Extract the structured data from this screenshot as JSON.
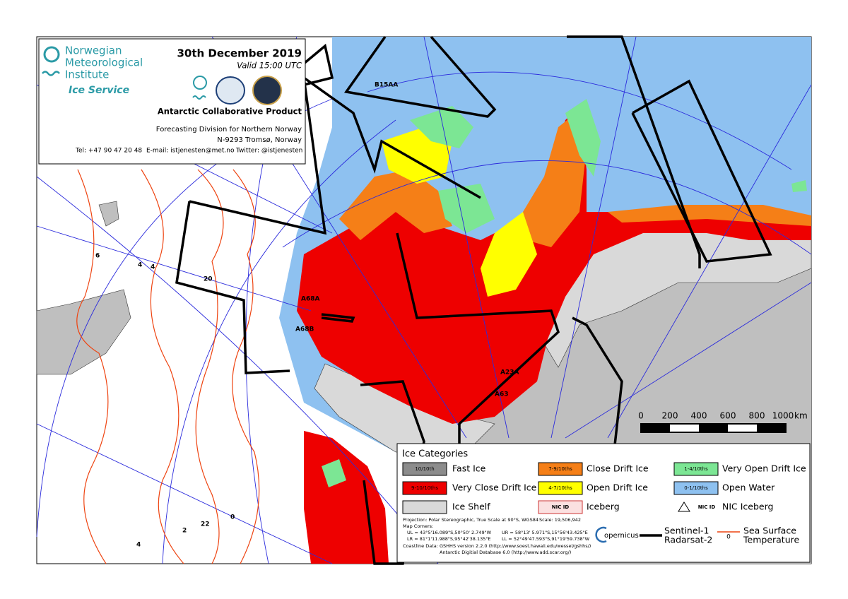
{
  "header": {
    "org_name": [
      "Norwegian",
      "Meteorological",
      "Institute"
    ],
    "service": "Ice Service",
    "date": "30th December 2019",
    "valid": "Valid 15:00 UTC",
    "product": "Antarctic Collaborative Product",
    "division": "Forecasting Division for Northern Norway",
    "address": "N-9293 Tromsø, Norway",
    "tel": "Tel: +47 90 47 20 48",
    "email": "E-mail: istjenesten@met.no",
    "twitter": "Twitter: @istjenesten"
  },
  "map_labels": [
    "B15AA",
    "A68A",
    "A68B",
    "A23A",
    "A63"
  ],
  "sst_labels": [
    6,
    4,
    4,
    20,
    2,
    22,
    0,
    4
  ],
  "scale_bar": {
    "ticks": [
      0,
      200,
      400,
      600,
      800,
      1000
    ],
    "unit": "km"
  },
  "legend": {
    "title": "Ice Categories",
    "items": [
      {
        "swatch": "10/10th",
        "label": "Fast Ice"
      },
      {
        "swatch": "9-10/10ths",
        "label": "Very Close Drift Ice"
      },
      {
        "label": "Ice Shelf"
      },
      {
        "swatch": "7-9/10ths",
        "label": "Close Drift Ice"
      },
      {
        "swatch": "4-7/10ths",
        "label": "Open Drift Ice"
      },
      {
        "swatch": "NIC ID",
        "label": "Iceberg"
      },
      {
        "swatch": "1-4/10ths",
        "label": "Very Open Drift Ice"
      },
      {
        "swatch": "0-1/10ths",
        "label": "Open Water"
      },
      {
        "swatch": "NIC ID",
        "label": "NIC Iceberg"
      }
    ],
    "projection": "Projection: Polar Stereographic, True Scale at 90°S, WGS84",
    "scale": "Scale: 19,506,942",
    "corners_title": "Map Corners:",
    "ul": "UL = 43°5'16.089\"S,50°50' 2.749\"W",
    "ur": "UR = 58°13' 5.971\"S,15°56'43.425\"E",
    "lr": "LR = 81°1'11.988\"S,95°42'38.135\"E",
    "ll": "LL = 52°49'47.593\"S,91°19'59.738\"W",
    "coastline": "Coastline Data:  GSHHS version 2.2.0 (http://www.soest.hawaii.edu/wessel/gshhs/)",
    "add": "Antarctic Digitial Database 6.0 (http://www.add.scar.org/)",
    "copernicus": "opernicus",
    "swath_1": "Sentinel-1",
    "swath_2": "Radarsat-2",
    "sst_value": 0,
    "sst_1": "Sea Surface",
    "sst_2": "Temperature"
  }
}
